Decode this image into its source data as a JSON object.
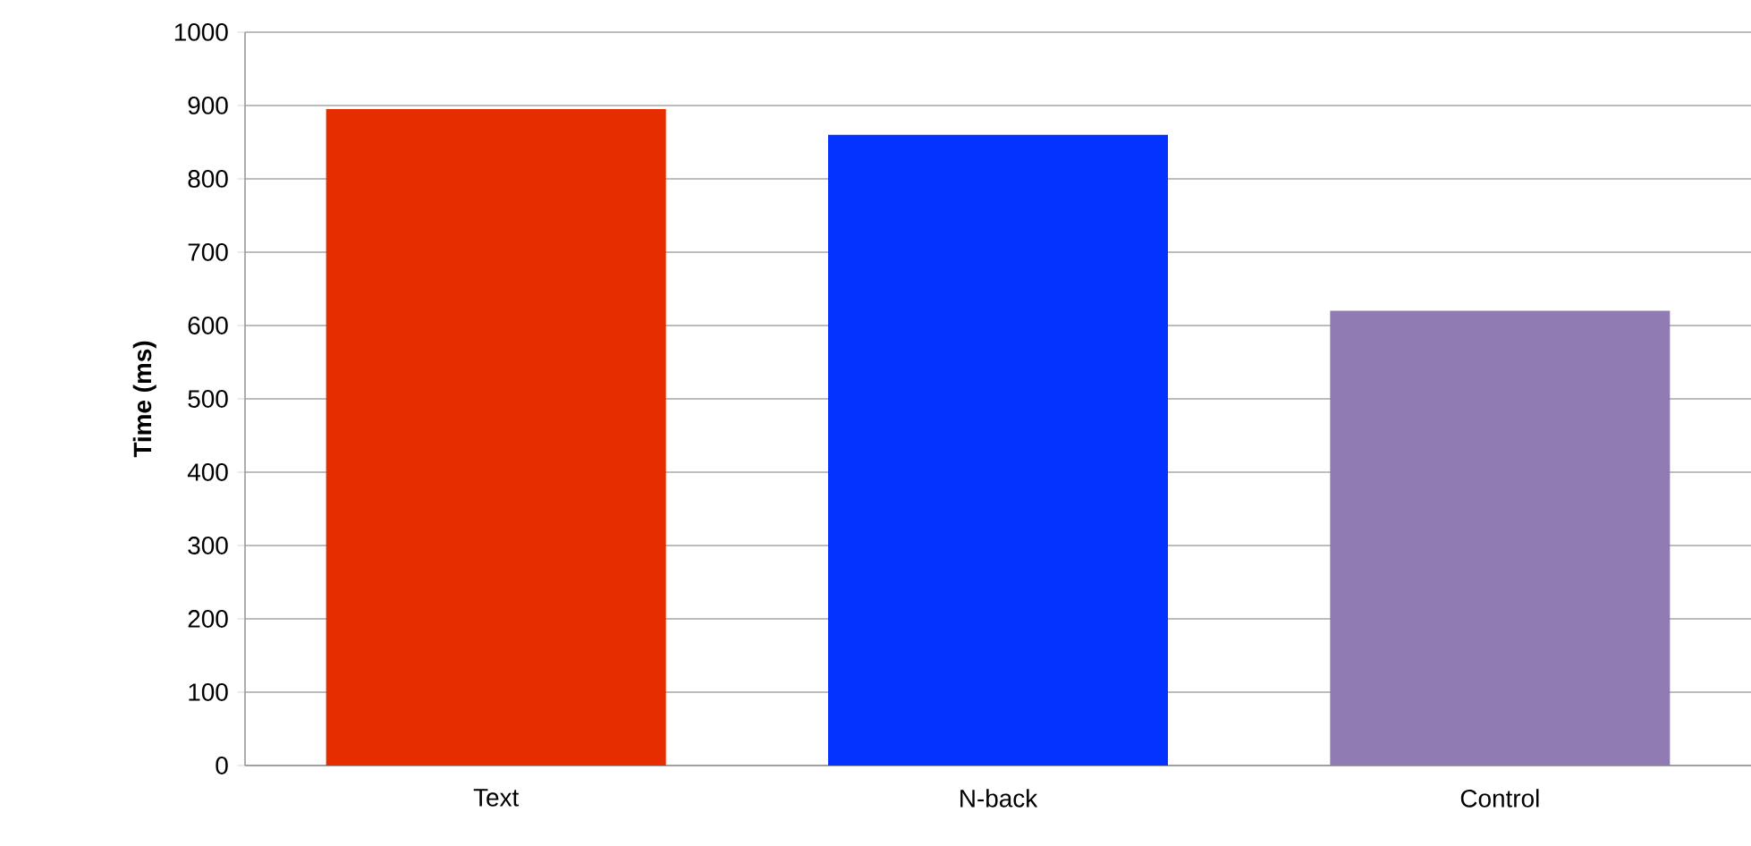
{
  "chart_data": {
    "type": "bar",
    "ylabel": "Time (ms)",
    "categories": [
      "Text",
      "N-back",
      "Control"
    ],
    "values": [
      895,
      860,
      620
    ],
    "colors": [
      "#e52d00",
      "#0433ff",
      "#917bb3"
    ],
    "ylim": [
      0,
      1000
    ],
    "yticks": [
      0,
      100,
      200,
      300,
      400,
      500,
      600,
      700,
      800,
      900,
      1000
    ],
    "grid": "y"
  }
}
